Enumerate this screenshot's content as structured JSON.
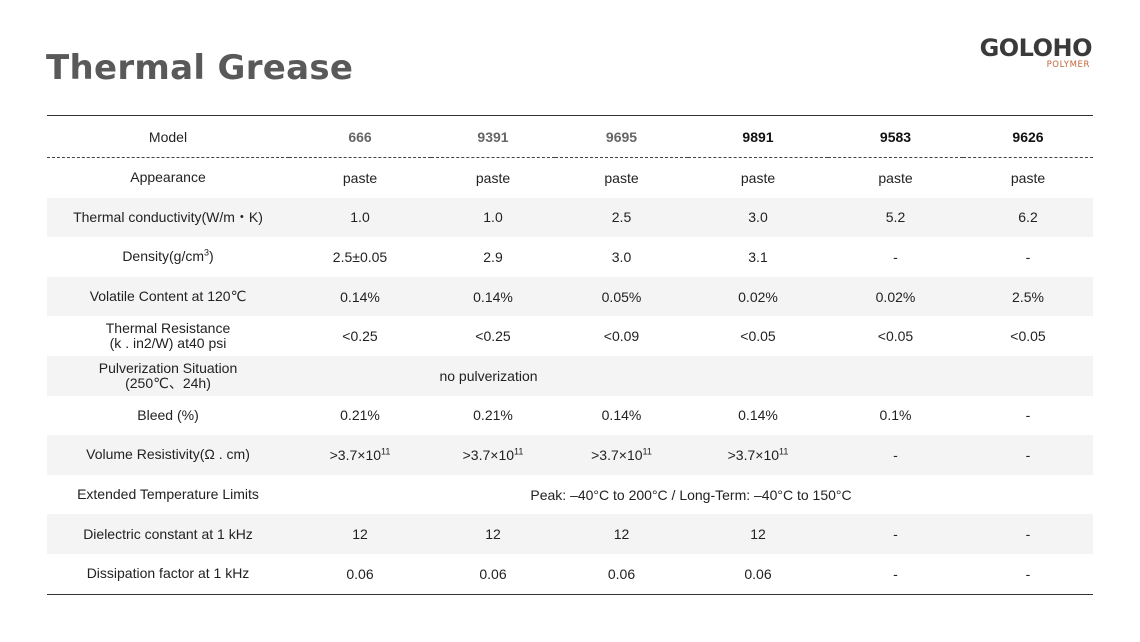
{
  "page": {
    "title": "Thermal Grease",
    "logo_main": "GOLOHO",
    "logo_sub": "POLYMER"
  },
  "table": {
    "header": {
      "label": "Model",
      "models": [
        "666",
        "9391",
        "9695",
        "9891",
        "9583",
        "9626"
      ]
    },
    "rows": [
      {
        "label": "Appearance",
        "values": [
          "paste",
          "paste",
          "paste",
          "paste",
          "paste",
          "paste"
        ]
      },
      {
        "label": "Thermal conductivity(W/m・K)",
        "values": [
          "1.0",
          "1.0",
          "2.5",
          "3.0",
          "5.2",
          "6.2"
        ]
      },
      {
        "label": "Density(g/cm",
        "label_sup": "3",
        "label_tail": ")",
        "values": [
          "2.5±0.05",
          "2.9",
          "3.0",
          "3.1",
          "-",
          "-"
        ]
      },
      {
        "label": "Volatile Content at 120℃",
        "values": [
          "0.14%",
          "0.14%",
          "0.05%",
          "0.02%",
          "0.02%",
          "2.5%"
        ]
      },
      {
        "label": "Thermal Resistance",
        "label_line2": "(k . in2/W) at40 psi",
        "values": [
          "<0.25",
          "<0.25",
          "<0.09",
          "<0.05",
          "<0.05",
          "<0.05"
        ]
      },
      {
        "label": "Pulverization Situation",
        "label_line2": "(250℃、24h)",
        "span_value": "no pulverization"
      },
      {
        "label": "Bleed (%)",
        "values": [
          "0.21%",
          "0.21%",
          "0.14%",
          "0.14%",
          "0.1%",
          "-"
        ]
      },
      {
        "label": "Volume Resistivity(Ω . cm)",
        "value_base": ">3.7×10",
        "value_exp": "11",
        "values": [
          "-",
          "-"
        ]
      },
      {
        "label": "Extended Temperature Limits",
        "span_value": "Peak: –40°C to 200°C / Long-Term: –40°C to 150°C"
      },
      {
        "label": "Dielectric constant at 1 kHz",
        "values": [
          "12",
          "12",
          "12",
          "12",
          "-",
          "-"
        ]
      },
      {
        "label": "Dissipation factor at 1 kHz",
        "values": [
          "0.06",
          "0.06",
          "0.06",
          "0.06",
          "-",
          "-"
        ]
      }
    ]
  }
}
